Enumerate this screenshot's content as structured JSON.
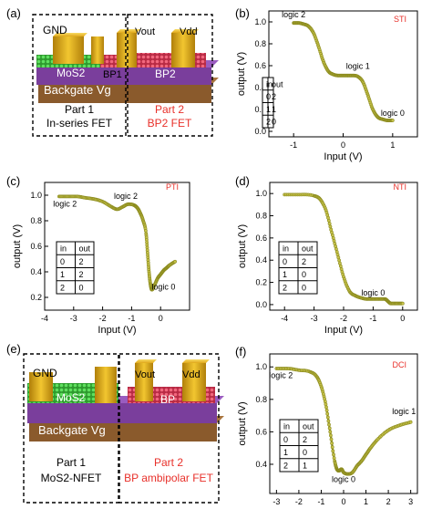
{
  "colors": {
    "curve": "#8a8a1e",
    "accent_red": "#e8302a",
    "gold": "#e9b21a",
    "mos2": "#3cc23c",
    "bp": "#e83c5a",
    "backgate": "#8a5a2c",
    "dielectric": "#7a3e9c",
    "frame": "#000000"
  },
  "panels": {
    "a": {
      "letter": "(a)",
      "labels": {
        "gnd": "GND",
        "vout": "Vout",
        "vdd": "Vdd",
        "mos2": "MoS2",
        "bp1": "BP1",
        "bp2": "BP2",
        "backgate": "Backgate Vg"
      },
      "parts": [
        {
          "title": "Part 1",
          "subtitle": "In-series FET"
        },
        {
          "title": "Part 2",
          "subtitle": "BP2 FET"
        }
      ]
    },
    "e": {
      "letter": "(e)",
      "labels": {
        "gnd": "GND",
        "vout": "Vout",
        "vdd": "Vdd",
        "mos2": "MoS2",
        "bp": "BP",
        "backgate": "Backgate Vg"
      },
      "parts": [
        {
          "title": "Part 1",
          "subtitle": "MoS2-NFET"
        },
        {
          "title": "Part 2",
          "subtitle": "BP ambipolar FET"
        }
      ]
    }
  },
  "chart_data": [
    {
      "panel": "b",
      "letter": "(b)",
      "type": "scatter",
      "tag": "STI",
      "xlabel": "Input (V)",
      "ylabel": "output (V)",
      "xlim": [
        -1.5,
        1.5
      ],
      "ylim": [
        -0.05,
        1.1
      ],
      "xticks": [
        -1,
        0,
        1
      ],
      "xtick_labels": [
        "-1",
        "0",
        "1"
      ],
      "yticks": [
        0.0,
        0.2,
        0.4,
        0.6,
        0.8,
        1.0
      ],
      "ytick_labels": [
        "0.0",
        "0.2",
        "0.4",
        "0.6",
        "0.8",
        "1.0"
      ],
      "x": [
        -1.0,
        -0.9,
        -0.8,
        -0.7,
        -0.6,
        -0.5,
        -0.4,
        -0.3,
        -0.2,
        -0.1,
        0.0,
        0.1,
        0.2,
        0.3,
        0.4,
        0.5,
        0.6,
        0.7,
        0.8,
        0.9,
        1.0
      ],
      "y": [
        0.99,
        0.99,
        0.98,
        0.96,
        0.9,
        0.78,
        0.64,
        0.55,
        0.52,
        0.51,
        0.51,
        0.51,
        0.51,
        0.5,
        0.45,
        0.33,
        0.2,
        0.13,
        0.11,
        0.1,
        0.1
      ],
      "annotations": [
        {
          "text": "logic 2",
          "x": -1.0,
          "y": 1.04
        },
        {
          "text": "logic 1",
          "x": 0.3,
          "y": 0.57
        },
        {
          "text": "logic 0",
          "x": 1.0,
          "y": 0.14
        }
      ],
      "truth_table": {
        "headers": [
          "in",
          "out"
        ],
        "rows": [
          [
            "0",
            "2"
          ],
          [
            "1",
            "1"
          ],
          [
            "2",
            "0"
          ]
        ]
      }
    },
    {
      "panel": "c",
      "letter": "(c)",
      "type": "scatter",
      "tag": "PTI",
      "xlabel": "Input (V)",
      "ylabel": "output (V)",
      "xlim": [
        -4,
        1
      ],
      "ylim": [
        0.1,
        1.1
      ],
      "xticks": [
        -4,
        -3,
        -2,
        -1,
        0
      ],
      "xtick_labels": [
        "-4",
        "-3",
        "-2",
        "-1",
        "0"
      ],
      "yticks": [
        0.2,
        0.4,
        0.6,
        0.8,
        1.0
      ],
      "ytick_labels": [
        "0.2",
        "0.4",
        "0.6",
        "0.8",
        "1.0"
      ],
      "x": [
        -3.5,
        -3.2,
        -2.9,
        -2.6,
        -2.3,
        -2.0,
        -1.7,
        -1.5,
        -1.3,
        -1.1,
        -0.9,
        -0.8,
        -0.7,
        -0.6,
        -0.5,
        -0.45,
        -0.4,
        -0.35,
        -0.3,
        -0.2,
        -0.1,
        0.0,
        0.1,
        0.2,
        0.3,
        0.5
      ],
      "y": [
        0.99,
        0.99,
        0.99,
        0.98,
        0.97,
        0.95,
        0.91,
        0.89,
        0.91,
        0.93,
        0.92,
        0.9,
        0.86,
        0.8,
        0.7,
        0.55,
        0.4,
        0.3,
        0.26,
        0.3,
        0.35,
        0.38,
        0.41,
        0.43,
        0.45,
        0.48
      ],
      "annotations": [
        {
          "text": "logic 2",
          "x": -3.3,
          "y": 0.91
        },
        {
          "text": "logic 2",
          "x": -1.2,
          "y": 0.97
        },
        {
          "text": "logic 0",
          "x": 0.1,
          "y": 0.26
        }
      ],
      "truth_table": {
        "headers": [
          "in",
          "out"
        ],
        "rows": [
          [
            "0",
            "2"
          ],
          [
            "1",
            "2"
          ],
          [
            "2",
            "0"
          ]
        ]
      }
    },
    {
      "panel": "d",
      "letter": "(d)",
      "type": "scatter",
      "tag": "NTI",
      "xlabel": "Input (V)",
      "ylabel": "output (V)",
      "xlim": [
        -4.5,
        0.5
      ],
      "ylim": [
        -0.05,
        1.1
      ],
      "xticks": [
        -4,
        -3,
        -2,
        -1,
        0
      ],
      "xtick_labels": [
        "-4",
        "-3",
        "-2",
        "-1",
        "0"
      ],
      "yticks": [
        0.0,
        0.2,
        0.4,
        0.6,
        0.8,
        1.0
      ],
      "ytick_labels": [
        "0.0",
        "0.2",
        "0.4",
        "0.6",
        "0.8",
        "1.0"
      ],
      "x": [
        -4.0,
        -3.5,
        -3.0,
        -2.8,
        -2.6,
        -2.4,
        -2.2,
        -2.0,
        -1.8,
        -1.6,
        -1.4,
        -1.2,
        -1.0,
        -0.8,
        -0.6,
        -0.5,
        -0.4,
        -0.2,
        0.0
      ],
      "y": [
        0.99,
        0.99,
        0.98,
        0.95,
        0.85,
        0.65,
        0.45,
        0.25,
        0.12,
        0.08,
        0.06,
        0.05,
        0.05,
        0.05,
        0.05,
        0.03,
        0.01,
        0.01,
        0.01
      ],
      "annotations": [
        {
          "text": "logic 0",
          "x": -1.0,
          "y": 0.08
        }
      ],
      "truth_table": {
        "headers": [
          "in",
          "out"
        ],
        "rows": [
          [
            "0",
            "2"
          ],
          [
            "1",
            "0"
          ],
          [
            "2",
            "0"
          ]
        ]
      }
    },
    {
      "panel": "f",
      "letter": "(f)",
      "type": "scatter",
      "tag": "DCI",
      "xlabel": "Input (V)",
      "ylabel": "output (V)",
      "xlim": [
        -3.3,
        3.3
      ],
      "ylim": [
        0.22,
        1.08
      ],
      "xticks": [
        -3,
        -2,
        -1,
        0,
        1,
        2,
        3
      ],
      "xtick_labels": [
        "-3",
        "-2",
        "-1",
        "0",
        "1",
        "2",
        "3"
      ],
      "yticks": [
        0.4,
        0.6,
        0.8,
        1.0
      ],
      "ytick_labels": [
        "0.4",
        "0.6",
        "0.8",
        "1.0"
      ],
      "x": [
        -3.0,
        -2.5,
        -2.0,
        -1.5,
        -1.2,
        -1.0,
        -0.8,
        -0.6,
        -0.4,
        -0.3,
        -0.2,
        -0.1,
        0.0,
        0.2,
        0.4,
        0.6,
        0.8,
        1.0,
        1.2,
        1.5,
        2.0,
        2.5,
        3.0
      ],
      "y": [
        0.99,
        0.99,
        0.98,
        0.97,
        0.94,
        0.88,
        0.77,
        0.6,
        0.42,
        0.37,
        0.36,
        0.37,
        0.35,
        0.34,
        0.35,
        0.39,
        0.42,
        0.46,
        0.5,
        0.55,
        0.61,
        0.64,
        0.66
      ],
      "annotations": [
        {
          "text": "logic 2",
          "x": -2.8,
          "y": 0.93
        },
        {
          "text": "logic 0",
          "x": 0.0,
          "y": 0.29
        },
        {
          "text": "logic 1",
          "x": 2.7,
          "y": 0.71
        }
      ],
      "truth_table": {
        "headers": [
          "in",
          "out"
        ],
        "rows": [
          [
            "0",
            "2"
          ],
          [
            "1",
            "0"
          ],
          [
            "2",
            "1"
          ]
        ]
      }
    }
  ]
}
